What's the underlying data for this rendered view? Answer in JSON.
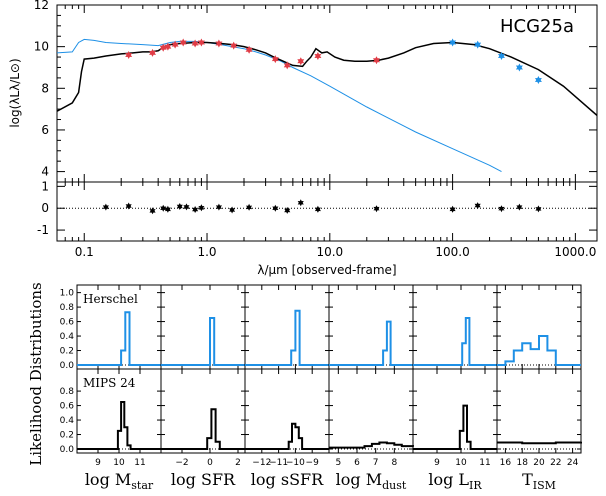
{
  "chart_data": [
    {
      "type": "line",
      "name": "sed",
      "title": "HCG25a",
      "ylabel": "log(λLλ/L⊙)",
      "xlabel": "λ/μm [observed-frame]",
      "xscale": "log",
      "xlim": [
        0.06,
        1500
      ],
      "ylim": [
        3.5,
        12
      ],
      "xticks": [
        {
          "v": 0.1,
          "label": "0.1"
        },
        {
          "v": 1,
          "label": "1.0"
        },
        {
          "v": 10,
          "label": "10.0"
        },
        {
          "v": 100,
          "label": "100.0"
        },
        {
          "v": 1000,
          "label": "1000.0"
        }
      ],
      "yticks": [
        {
          "v": 4,
          "label": "4"
        },
        {
          "v": 6,
          "label": "6"
        },
        {
          "v": 8,
          "label": "8"
        },
        {
          "v": 10,
          "label": "10"
        },
        {
          "v": 12,
          "label": "12"
        }
      ],
      "colors": {
        "model": "#000000",
        "stellar": "#1e90e6",
        "optical_points": "#e03c46",
        "fir_points": "#1e90e6"
      },
      "series": [
        {
          "name": "best-fit model",
          "x": [
            0.06,
            0.08,
            0.09,
            0.095,
            0.1,
            0.12,
            0.15,
            0.2,
            0.25,
            0.3,
            0.35,
            0.4,
            0.45,
            0.5,
            0.6,
            0.8,
            1.0,
            1.3,
            1.6,
            2.0,
            2.5,
            3.0,
            3.5,
            4.0,
            5.0,
            6.0,
            6.5,
            7.0,
            7.7,
            8.6,
            9.5,
            11,
            13,
            16,
            20,
            25,
            30,
            40,
            50,
            70,
            100,
            150,
            200,
            300,
            500,
            800,
            1500
          ],
          "y": [
            6.9,
            7.3,
            7.8,
            8.8,
            9.4,
            9.45,
            9.55,
            9.65,
            9.7,
            9.75,
            9.75,
            9.8,
            10.0,
            10.1,
            10.15,
            10.2,
            10.2,
            10.15,
            10.1,
            10.0,
            9.85,
            9.7,
            9.5,
            9.35,
            9.1,
            9.05,
            9.3,
            9.5,
            9.9,
            9.7,
            9.75,
            9.5,
            9.35,
            9.3,
            9.3,
            9.35,
            9.45,
            9.7,
            9.95,
            10.15,
            10.2,
            10.1,
            9.9,
            9.5,
            8.9,
            8.1,
            6.7
          ]
        },
        {
          "name": "stellar component",
          "x": [
            0.06,
            0.08,
            0.09,
            0.1,
            0.12,
            0.15,
            0.2,
            0.3,
            0.4,
            0.5,
            0.6,
            0.8,
            1.0,
            1.3,
            1.6,
            2.0,
            2.5,
            3.0,
            4.0,
            5.0,
            7.0,
            10,
            20,
            50,
            100,
            200,
            250
          ],
          "y": [
            9.7,
            9.75,
            10.2,
            10.35,
            10.3,
            10.2,
            10.15,
            10.1,
            10.05,
            10.2,
            10.25,
            10.25,
            10.2,
            10.1,
            10.0,
            9.9,
            9.75,
            9.6,
            9.3,
            9.0,
            8.6,
            8.1,
            7.1,
            5.9,
            5.1,
            4.3,
            4.0
          ]
        }
      ],
      "points_optical": [
        {
          "x": 0.23,
          "y": 9.6
        },
        {
          "x": 0.36,
          "y": 9.7
        },
        {
          "x": 0.44,
          "y": 9.95
        },
        {
          "x": 0.48,
          "y": 10.0
        },
        {
          "x": 0.55,
          "y": 10.1
        },
        {
          "x": 0.64,
          "y": 10.2
        },
        {
          "x": 0.8,
          "y": 10.15
        },
        {
          "x": 0.9,
          "y": 10.2
        },
        {
          "x": 1.25,
          "y": 10.15
        },
        {
          "x": 1.65,
          "y": 10.05
        },
        {
          "x": 2.2,
          "y": 9.85
        },
        {
          "x": 3.6,
          "y": 9.4
        },
        {
          "x": 4.5,
          "y": 9.1
        },
        {
          "x": 5.8,
          "y": 9.3
        },
        {
          "x": 8.0,
          "y": 9.55
        },
        {
          "x": 24,
          "y": 9.35
        }
      ],
      "points_fir": [
        {
          "x": 100,
          "y": 10.2
        },
        {
          "x": 160,
          "y": 10.1
        },
        {
          "x": 250,
          "y": 9.55
        },
        {
          "x": 350,
          "y": 9.0
        },
        {
          "x": 500,
          "y": 8.4
        }
      ]
    },
    {
      "type": "scatter",
      "name": "residuals",
      "xscale": "log",
      "xlim": [
        0.06,
        1500
      ],
      "ylim": [
        -1.5,
        1.2
      ],
      "yticks": [
        {
          "v": 1,
          "label": "1"
        },
        {
          "v": 0,
          "label": "0"
        },
        {
          "v": -1,
          "label": "-1"
        }
      ],
      "points": [
        {
          "x": 0.15,
          "y": 0.05
        },
        {
          "x": 0.23,
          "y": 0.1
        },
        {
          "x": 0.36,
          "y": -0.12
        },
        {
          "x": 0.44,
          "y": 0.0
        },
        {
          "x": 0.48,
          "y": -0.05
        },
        {
          "x": 0.6,
          "y": 0.08
        },
        {
          "x": 0.68,
          "y": 0.06
        },
        {
          "x": 0.8,
          "y": -0.06
        },
        {
          "x": 0.9,
          "y": 0.02
        },
        {
          "x": 1.25,
          "y": 0.05
        },
        {
          "x": 1.6,
          "y": -0.08
        },
        {
          "x": 2.2,
          "y": 0.04
        },
        {
          "x": 3.6,
          "y": 0.0
        },
        {
          "x": 4.5,
          "y": -0.1
        },
        {
          "x": 5.8,
          "y": 0.25
        },
        {
          "x": 8.0,
          "y": -0.05
        },
        {
          "x": 24,
          "y": -0.02
        },
        {
          "x": 100,
          "y": -0.05
        },
        {
          "x": 160,
          "y": 0.12
        },
        {
          "x": 250,
          "y": -0.02
        },
        {
          "x": 350,
          "y": 0.05
        },
        {
          "x": 500,
          "y": -0.03
        }
      ]
    },
    {
      "type": "line",
      "name": "likelihood",
      "ylabel": "Likelihood Distributions",
      "rows": [
        {
          "label": "Herschel",
          "color": "#1e90e6",
          "yticks": [
            {
              "v": 1.0,
              "label": "1.0"
            },
            {
              "v": 0.8,
              "label": "0.8"
            },
            {
              "v": 0.6,
              "label": "0.6"
            },
            {
              "v": 0.4,
              "label": "0.4"
            },
            {
              "v": 0.2,
              "label": "0.2"
            },
            {
              "v": 0.0,
              "label": "0.0"
            }
          ]
        },
        {
          "label": "MIPS 24",
          "color": "#000000",
          "yticks": [
            {
              "v": 0.8,
              "label": "0.8"
            },
            {
              "v": 0.6,
              "label": "0.6"
            },
            {
              "v": 0.4,
              "label": "0.4"
            },
            {
              "v": 0.2,
              "label": "0.2"
            },
            {
              "v": 0.0,
              "label": "0.0"
            }
          ]
        }
      ],
      "columns": [
        {
          "label_main": "log M",
          "label_sub": "star",
          "xlim": [
            8,
            12
          ],
          "xticks": [
            {
              "v": 9,
              "label": "9"
            },
            {
              "v": 10,
              "label": "10"
            },
            {
              "v": 11,
              "label": "11"
            }
          ],
          "herschel": {
            "x": [
              8,
              9.9,
              10.1,
              10.3,
              10.5,
              12
            ],
            "y": [
              0,
              0,
              0.2,
              0.73,
              0,
              0
            ]
          },
          "mips": {
            "x": [
              8,
              9.8,
              9.95,
              10.1,
              10.25,
              10.4,
              10.55,
              12
            ],
            "y": [
              0,
              0,
              0.25,
              0.65,
              0.3,
              0.05,
              0,
              0
            ]
          }
        },
        {
          "label_main": "log SFR",
          "label_sub": "",
          "xlim": [
            -3.5,
            2.5
          ],
          "xticks": [
            {
              "v": -2,
              "label": "−2"
            },
            {
              "v": 0,
              "label": "0"
            },
            {
              "v": 2,
              "label": "2"
            }
          ],
          "herschel": {
            "x": [
              -3.5,
              -0.3,
              0.0,
              0.3,
              2.5
            ],
            "y": [
              0,
              0,
              0.65,
              0,
              0
            ]
          },
          "mips": {
            "x": [
              -3.5,
              -0.5,
              -0.2,
              0.1,
              0.4,
              0.7,
              2.5
            ],
            "y": [
              0,
              0,
              0.15,
              0.55,
              0.1,
              0,
              0
            ]
          }
        },
        {
          "label_main": "log sSFR",
          "label_sub": "",
          "xlim": [
            -13,
            -8
          ],
          "xticks": [
            {
              "v": -12,
              "label": "−12"
            },
            {
              "v": -11,
              "label": "−11"
            },
            {
              "v": -10,
              "label": "−10"
            },
            {
              "v": -9,
              "label": "−9"
            }
          ],
          "herschel": {
            "x": [
              -13,
              -10.5,
              -10.25,
              -10.0,
              -9.75,
              -8
            ],
            "y": [
              0,
              0,
              0.2,
              0.75,
              0,
              0
            ]
          },
          "mips": {
            "x": [
              -13,
              -10.6,
              -10.4,
              -10.2,
              -10.0,
              -9.8,
              -9.6,
              -8
            ],
            "y": [
              0,
              0,
              0.1,
              0.35,
              0.3,
              0.15,
              0,
              0
            ]
          }
        },
        {
          "label_main": "log M",
          "label_sub": "dust",
          "xlim": [
            4.5,
            9
          ],
          "xticks": [
            {
              "v": 5,
              "label": "5"
            },
            {
              "v": 6,
              "label": "6"
            },
            {
              "v": 7,
              "label": "7"
            },
            {
              "v": 8,
              "label": "8"
            }
          ],
          "herschel": {
            "x": [
              4.5,
              7.2,
              7.4,
              7.6,
              7.8,
              9
            ],
            "y": [
              0,
              0,
              0.2,
              0.6,
              0,
              0
            ]
          },
          "mips": {
            "x": [
              4.5,
              6.0,
              6.4,
              6.8,
              7.2,
              7.6,
              8.0,
              8.4,
              9
            ],
            "y": [
              0.02,
              0.02,
              0.04,
              0.07,
              0.09,
              0.08,
              0.06,
              0.04,
              0.03
            ]
          }
        },
        {
          "label_main": "log L",
          "label_sub": "IR",
          "xlim": [
            8,
            11.5
          ],
          "xticks": [
            {
              "v": 9,
              "label": "9"
            },
            {
              "v": 10,
              "label": "10"
            },
            {
              "v": 11,
              "label": "11"
            }
          ],
          "herschel": {
            "x": [
              8,
              9.9,
              10.05,
              10.2,
              10.35,
              11.5
            ],
            "y": [
              0,
              0,
              0.3,
              0.65,
              0,
              0
            ]
          },
          "mips": {
            "x": [
              8,
              9.8,
              9.95,
              10.1,
              10.25,
              10.4,
              11.5
            ],
            "y": [
              0,
              0,
              0.25,
              0.6,
              0.1,
              0,
              0
            ]
          }
        },
        {
          "label_main": "T",
          "label_sub": "ISM",
          "xlim": [
            15,
            25
          ],
          "xticks": [
            {
              "v": 16,
              "label": "16"
            },
            {
              "v": 18,
              "label": "18"
            },
            {
              "v": 20,
              "label": "20"
            },
            {
              "v": 22,
              "label": "22"
            },
            {
              "v": 24,
              "label": "24"
            }
          ],
          "herschel": {
            "x": [
              15,
              16,
              17,
              18,
              19,
              20,
              21,
              22,
              25
            ],
            "y": [
              0,
              0.05,
              0.2,
              0.3,
              0.22,
              0.4,
              0.2,
              0,
              0
            ]
          },
          "mips": {
            "x": [
              15,
              16,
              18,
              20,
              22,
              24,
              25
            ],
            "y": [
              0.09,
              0.09,
              0.08,
              0.08,
              0.09,
              0.09,
              0.1
            ]
          }
        }
      ]
    }
  ]
}
